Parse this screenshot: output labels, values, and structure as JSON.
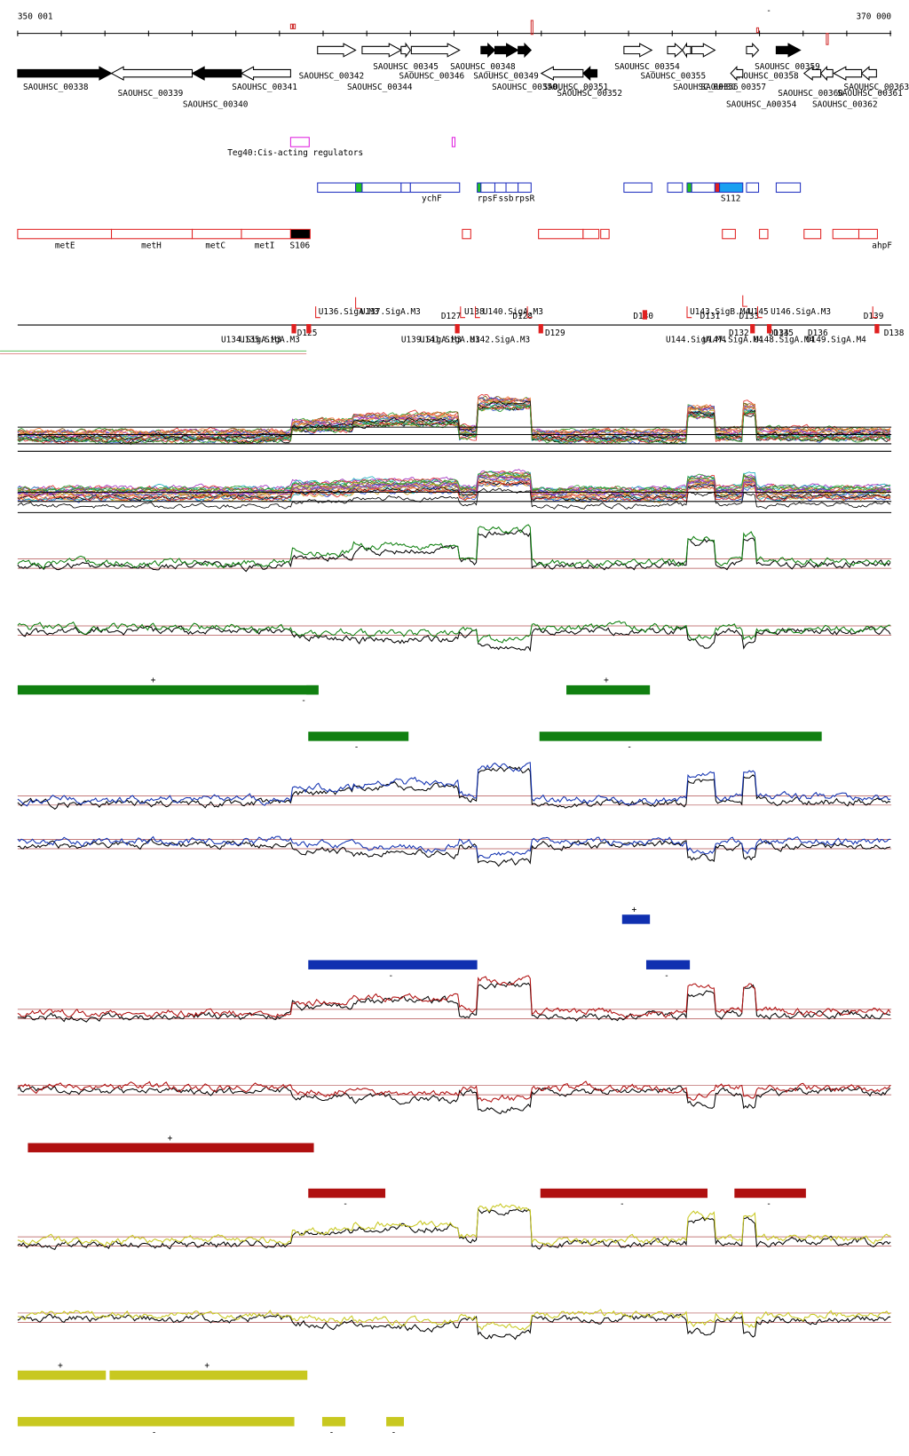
{
  "ruler": {
    "start": "350 001",
    "end": "370 000"
  },
  "genes": [
    "SAOUHSC_00338",
    "SAOUHSC_00339",
    "SAOUHSC_00340",
    "SAOUHSC_00341",
    "SAOUHSC_00342",
    "SAOUHSC_00344",
    "SAOUHSC_00345",
    "SAOUHSC_00346",
    "SAOUHSC_00348",
    "SAOUHSC_00349",
    "SAOUHSC_00350",
    "SAOUHSC_00351",
    "SAOUHSC_00352",
    "SAOUHSC_00354",
    "SAOUHSC_00355",
    "SAOUHSC_00356",
    "SAOUHSC_00357",
    "SAOUHSC_00358",
    "SAOUHSC_00359",
    "SAOUHSC_00360",
    "SAOUHSC_00361",
    "SAOUHSC_00362",
    "SAOUHSC_00363",
    "SAOUHSC_A00354"
  ],
  "regulators": {
    "label": "Teg40:Cis-acting regulators"
  },
  "features_blue": [
    "ychF",
    "rpsF",
    "ssb",
    "rpsR",
    "S112"
  ],
  "features_red": [
    "metE",
    "metH",
    "metC",
    "metI",
    "S106",
    "ahpF"
  ],
  "transcripts_top": [
    "U136.SigA.M3",
    "U137.SigA.M3",
    "D127",
    "U138",
    "U140.SigA.M3",
    "D128",
    "D130",
    "U143.SigB.M4",
    "U145",
    "U146.SigA.M3",
    "D131",
    "D133",
    "D139"
  ],
  "transcripts_bottom": [
    "U134.SigA.M3",
    "U135.SigA.M3",
    "D125",
    "U139.SigA.M3",
    "U141.SigA.M3",
    "U142.SigA.M3",
    "D129",
    "U144.SigA.M4",
    "U147.SigA.M4",
    "D132",
    "U148.SigA.M4",
    "D134",
    "D135",
    "U149.SigA.M4",
    "D136",
    "D138"
  ],
  "markers": {
    "plus": "+",
    "minus": "-"
  }
}
